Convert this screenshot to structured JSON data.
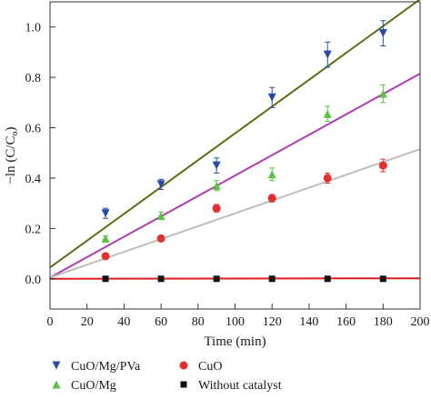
{
  "chart_data": {
    "type": "scatter",
    "xlabel": "Time (min)",
    "ylabel_prefix": "−ln (C/C",
    "ylabel_sub": "o",
    "ylabel_suffix": ")",
    "xlim": [
      0,
      200
    ],
    "ylim": [
      -0.12,
      1.1
    ],
    "xticks": [
      0,
      20,
      40,
      60,
      80,
      100,
      120,
      140,
      160,
      180,
      200
    ],
    "yticks": [
      0.0,
      0.2,
      0.4,
      0.6,
      0.8,
      1.0
    ],
    "ytick_labels": [
      "0.0",
      "0.2",
      "0.4",
      "0.6",
      "0.8",
      "1.0"
    ],
    "grid": false,
    "legend_placement": "bottom",
    "series": [
      {
        "name": "CuO/Mg/PVa",
        "marker": "triangle-down",
        "color": "#2a4aa6",
        "fit_color": "#5e6e14",
        "x": [
          30,
          60,
          90,
          120,
          150,
          180
        ],
        "y": [
          0.26,
          0.375,
          0.45,
          0.72,
          0.89,
          0.975
        ],
        "err": [
          0.02,
          0.02,
          0.03,
          0.04,
          0.05,
          0.05
        ],
        "fit": {
          "x": [
            0,
            200
          ],
          "y": [
            0.045,
            1.11
          ]
        }
      },
      {
        "name": "CuO/Mg",
        "marker": "triangle-up",
        "color": "#5fc044",
        "fit_color": "#b03bb0",
        "x": [
          30,
          60,
          90,
          120,
          150,
          180
        ],
        "y": [
          0.16,
          0.25,
          0.37,
          0.415,
          0.655,
          0.735
        ],
        "err": [
          0.01,
          0.015,
          0.02,
          0.025,
          0.03,
          0.035
        ],
        "fit": {
          "x": [
            0,
            200
          ],
          "y": [
            0.005,
            0.815
          ]
        }
      },
      {
        "name": "CuO",
        "marker": "circle",
        "color": "#e03030",
        "fit_color": "#bdbdbd",
        "x": [
          30,
          60,
          90,
          120,
          150,
          180
        ],
        "y": [
          0.09,
          0.16,
          0.28,
          0.32,
          0.4,
          0.45
        ],
        "err": [
          0.01,
          0.01,
          0.015,
          0.015,
          0.02,
          0.025
        ],
        "fit": {
          "x": [
            0,
            200
          ],
          "y": [
            0.005,
            0.515
          ]
        }
      },
      {
        "name": "Without catalyst",
        "marker": "square",
        "color": "#111111",
        "fit_color": "#e02020",
        "x": [
          30,
          60,
          90,
          120,
          150,
          180
        ],
        "y": [
          0.0,
          0.0,
          0.0,
          0.0,
          0.0,
          0.0
        ],
        "err": [
          0.005,
          0.005,
          0.005,
          0.005,
          0.005,
          0.005
        ],
        "fit": {
          "x": [
            0,
            200
          ],
          "y": [
            0.0,
            0.002
          ]
        }
      }
    ]
  }
}
